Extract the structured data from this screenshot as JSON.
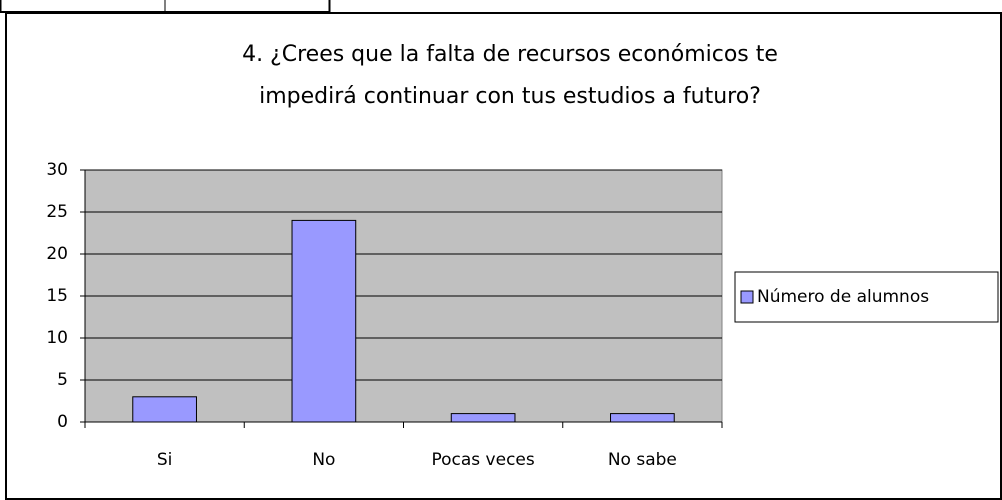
{
  "chart_data": {
    "type": "bar",
    "title": [
      "4. ¿Crees que la falta de recursos económicos te",
      "impedirá continuar con tus estudios a futuro?"
    ],
    "categories": [
      "Si",
      "No",
      "Pocas veces",
      "No sabe"
    ],
    "series": [
      {
        "name": "Número de alumnos",
        "color": "#9999ff",
        "values": [
          3,
          24,
          1,
          1
        ]
      }
    ],
    "ylim": [
      0,
      30
    ],
    "yticks": [
      0,
      5,
      10,
      15,
      20,
      25,
      30
    ],
    "grid": true,
    "legend": "right"
  }
}
